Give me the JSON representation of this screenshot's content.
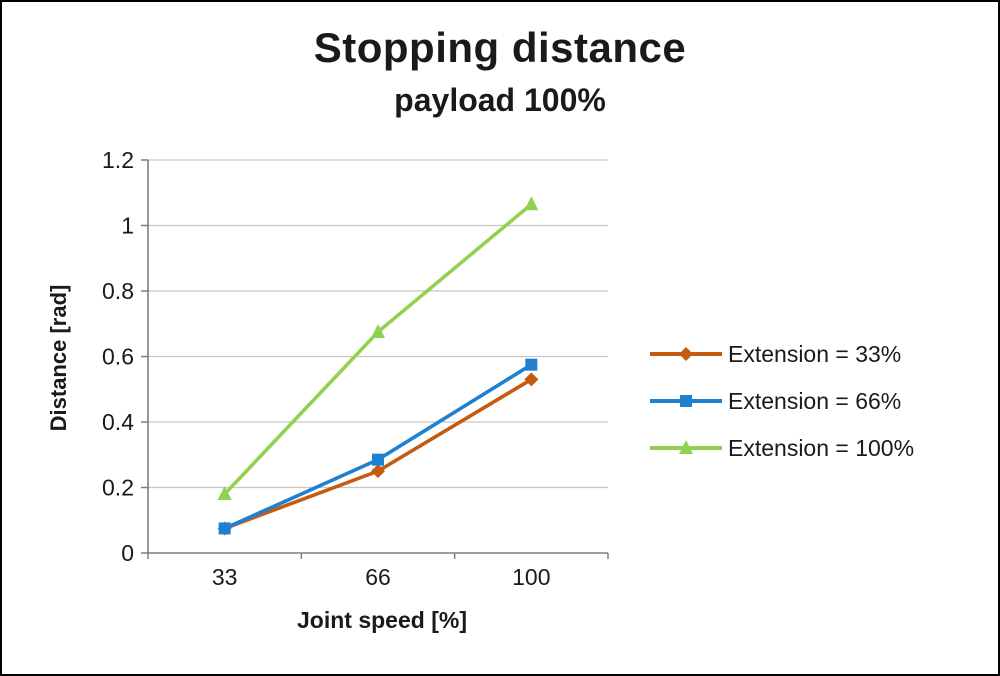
{
  "chart_data": {
    "type": "line",
    "title": "Stopping distance",
    "subtitle": "payload 100%",
    "xlabel": "Joint speed [%]",
    "ylabel": "Distance [rad]",
    "categories": [
      "33",
      "66",
      "100"
    ],
    "series": [
      {
        "name": "Extension = 33%",
        "color": "#c55a11",
        "marker": "diamond",
        "values": [
          0.075,
          0.25,
          0.53
        ]
      },
      {
        "name": "Extension = 66%",
        "color": "#2080d0",
        "marker": "square",
        "values": [
          0.075,
          0.285,
          0.575
        ]
      },
      {
        "name": "Extension = 100%",
        "color": "#92d050",
        "marker": "triangle",
        "values": [
          0.18,
          0.675,
          1.065
        ]
      }
    ],
    "ylim": [
      0,
      1.2
    ],
    "ytick_step": 0.2,
    "grid": true,
    "legend_position": "right",
    "axis_color": "#7f7f7f",
    "gridline_color": "#c6c6c6",
    "tick_label_color": "#1a1a1a"
  }
}
